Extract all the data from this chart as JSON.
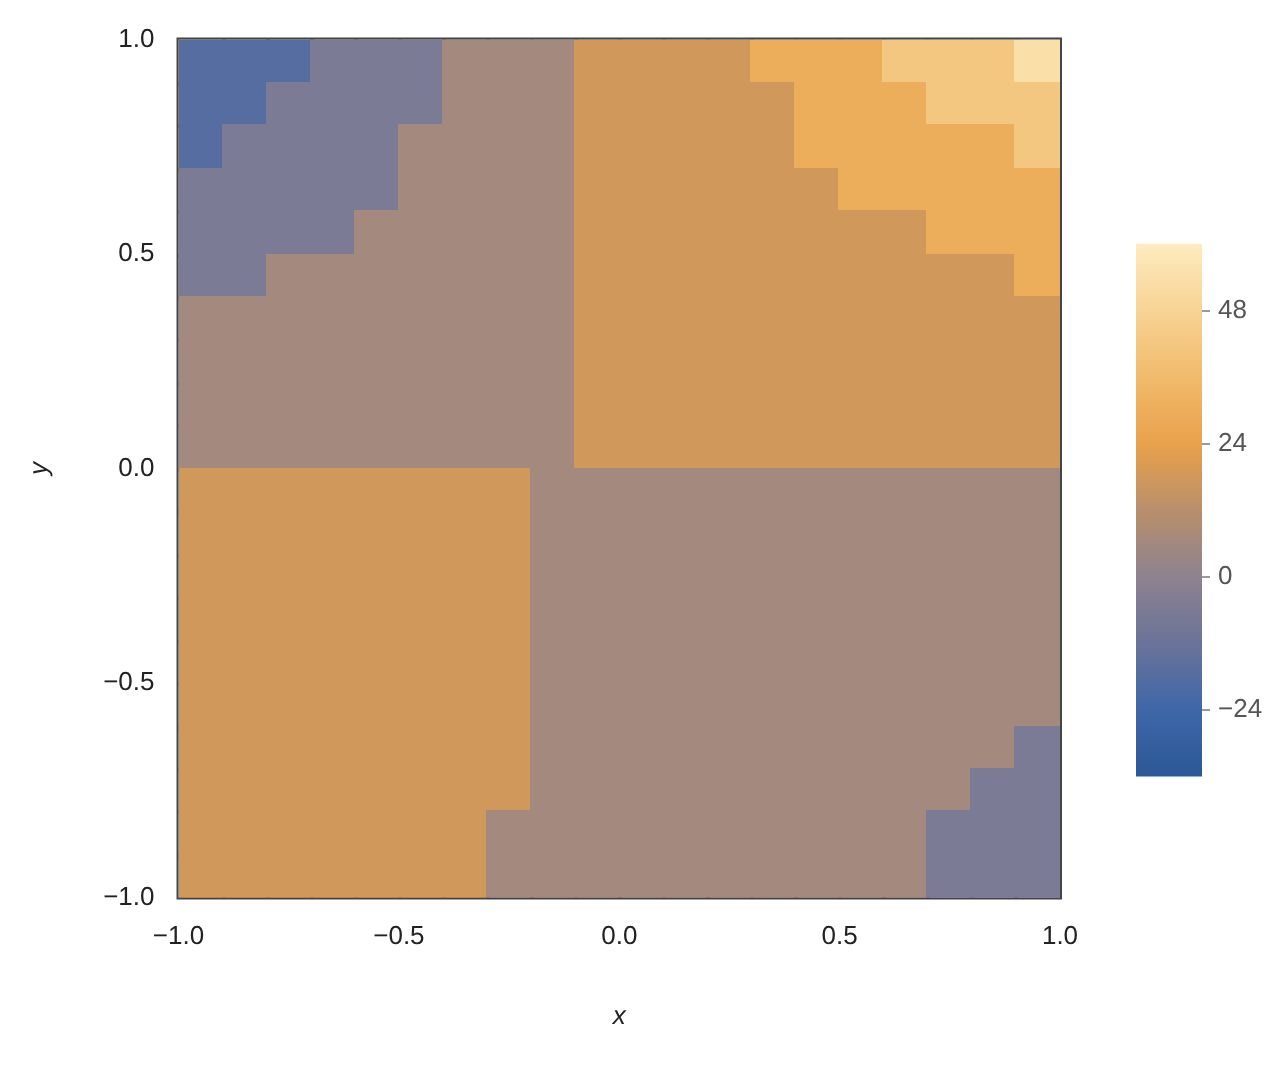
{
  "chart_data": {
    "type": "heatmap",
    "xlabel": "x",
    "ylabel": "y",
    "xlim": [
      -1,
      1
    ],
    "ylim": [
      -1,
      1
    ],
    "xticks": [
      {
        "value": -1,
        "label": "−1.0"
      },
      {
        "value": -0.5,
        "label": "−0.5"
      },
      {
        "value": 0,
        "label": "0.0"
      },
      {
        "value": 0.5,
        "label": "0.5"
      },
      {
        "value": 1,
        "label": "1.0"
      }
    ],
    "yticks": [
      {
        "value": -1,
        "label": "−1.0"
      },
      {
        "value": -0.5,
        "label": "−0.5"
      },
      {
        "value": 0,
        "label": "0.0"
      },
      {
        "value": 0.5,
        "label": "0.5"
      },
      {
        "value": 1,
        "label": "1.0"
      }
    ],
    "clim": [
      -36,
      60
    ],
    "cticks": [
      {
        "value": -24,
        "label": "−24"
      },
      0,
      24,
      48
    ],
    "cells": [
      [
        -18,
        -18,
        -18,
        -6,
        -6,
        -6,
        6,
        6,
        6,
        18,
        18,
        18,
        18,
        30,
        30,
        30,
        42,
        42,
        42,
        54
      ],
      [
        -18,
        -18,
        -6,
        -6,
        -6,
        -6,
        6,
        6,
        6,
        18,
        18,
        18,
        18,
        18,
        30,
        30,
        30,
        42,
        42,
        42
      ],
      [
        -18,
        -6,
        -6,
        -6,
        -6,
        6,
        6,
        6,
        6,
        18,
        18,
        18,
        18,
        18,
        30,
        30,
        30,
        30,
        30,
        42
      ],
      [
        -6,
        -6,
        -6,
        -6,
        -6,
        6,
        6,
        6,
        6,
        18,
        18,
        18,
        18,
        18,
        18,
        30,
        30,
        30,
        30,
        30
      ],
      [
        -6,
        -6,
        -6,
        -6,
        6,
        6,
        6,
        6,
        6,
        18,
        18,
        18,
        18,
        18,
        18,
        18,
        18,
        30,
        30,
        30
      ],
      [
        -6,
        -6,
        6,
        6,
        6,
        6,
        6,
        6,
        6,
        18,
        18,
        18,
        18,
        18,
        18,
        18,
        18,
        18,
        18,
        30
      ],
      [
        6,
        6,
        6,
        6,
        6,
        6,
        6,
        6,
        6,
        18,
        18,
        18,
        18,
        18,
        18,
        18,
        18,
        18,
        18,
        18
      ],
      [
        6,
        6,
        6,
        6,
        6,
        6,
        6,
        6,
        6,
        18,
        18,
        18,
        18,
        18,
        18,
        18,
        18,
        18,
        18,
        18
      ],
      [
        6,
        6,
        6,
        6,
        6,
        6,
        6,
        6,
        6,
        18,
        18,
        18,
        18,
        18,
        18,
        18,
        18,
        18,
        18,
        18
      ],
      [
        6,
        6,
        6,
        6,
        6,
        6,
        6,
        6,
        6,
        18,
        18,
        18,
        18,
        18,
        18,
        18,
        18,
        18,
        18,
        18
      ],
      [
        18,
        18,
        18,
        18,
        18,
        18,
        18,
        18,
        6,
        6,
        6,
        6,
        6,
        6,
        6,
        6,
        6,
        6,
        6,
        6
      ],
      [
        18,
        18,
        18,
        18,
        18,
        18,
        18,
        18,
        6,
        6,
        6,
        6,
        6,
        6,
        6,
        6,
        6,
        6,
        6,
        6
      ],
      [
        18,
        18,
        18,
        18,
        18,
        18,
        18,
        18,
        6,
        6,
        6,
        6,
        6,
        6,
        6,
        6,
        6,
        6,
        6,
        6
      ],
      [
        18,
        18,
        18,
        18,
        18,
        18,
        18,
        18,
        6,
        6,
        6,
        6,
        6,
        6,
        6,
        6,
        6,
        6,
        6,
        6
      ],
      [
        18,
        18,
        18,
        18,
        18,
        18,
        18,
        18,
        6,
        6,
        6,
        6,
        6,
        6,
        6,
        6,
        6,
        6,
        6,
        6
      ],
      [
        18,
        18,
        18,
        18,
        18,
        18,
        18,
        18,
        6,
        6,
        6,
        6,
        6,
        6,
        6,
        6,
        6,
        6,
        6,
        6
      ],
      [
        18,
        18,
        18,
        18,
        18,
        18,
        18,
        18,
        6,
        6,
        6,
        6,
        6,
        6,
        6,
        6,
        6,
        6,
        6,
        -6
      ],
      [
        18,
        18,
        18,
        18,
        18,
        18,
        18,
        18,
        6,
        6,
        6,
        6,
        6,
        6,
        6,
        6,
        6,
        6,
        -6,
        -6
      ],
      [
        18,
        18,
        18,
        18,
        18,
        18,
        18,
        6,
        6,
        6,
        6,
        6,
        6,
        6,
        6,
        6,
        6,
        -6,
        -6,
        -6
      ],
      [
        18,
        18,
        18,
        18,
        18,
        18,
        18,
        6,
        6,
        6,
        6,
        6,
        6,
        6,
        6,
        6,
        6,
        -6,
        -6,
        -6
      ]
    ]
  }
}
